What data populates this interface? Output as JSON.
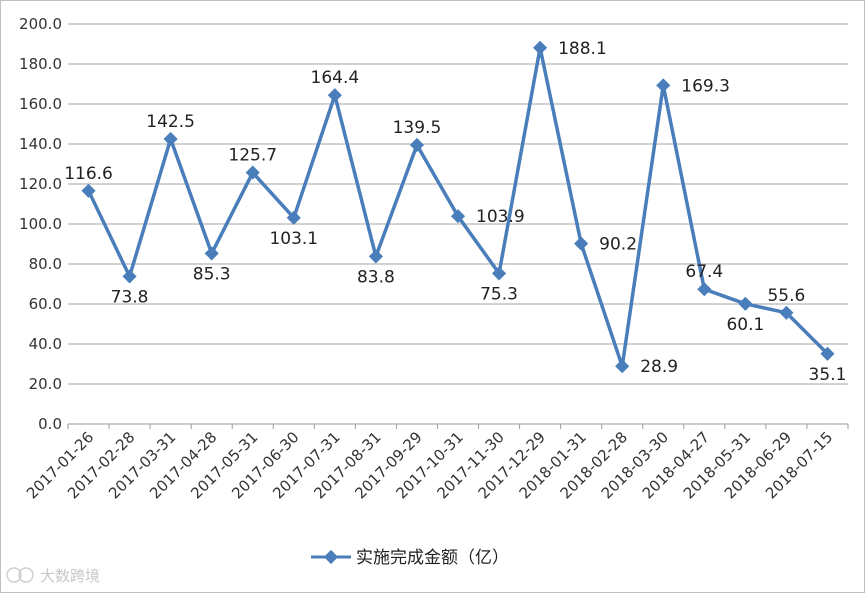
{
  "chart_data": {
    "type": "line",
    "categories": [
      "2017-01-26",
      "2017-02-28",
      "2017-03-31",
      "2017-04-28",
      "2017-05-31",
      "2017-06-30",
      "2017-07-31",
      "2017-08-31",
      "2017-09-29",
      "2017-10-31",
      "2017-11-30",
      "2017-12-29",
      "2018-01-31",
      "2018-02-28",
      "2018-03-30",
      "2018-04-27",
      "2018-05-31",
      "2018-06-29",
      "2018-07-15"
    ],
    "series": [
      {
        "name": "实施完成金额（亿）",
        "values": [
          116.6,
          73.8,
          142.5,
          85.3,
          125.7,
          103.1,
          164.4,
          83.8,
          139.5,
          103.9,
          75.3,
          188.1,
          90.2,
          28.9,
          169.3,
          67.4,
          60.1,
          55.6,
          35.1
        ],
        "data_labels": [
          "116.6",
          "73.8",
          "142.5",
          "85.3",
          "125.7",
          "103.1",
          "164.4",
          "83.8",
          "139.5",
          "103.9",
          "75.3",
          "188.1",
          "90.2",
          "28.9",
          "169.3",
          "67.4",
          "60.1",
          "55.6",
          "35.1"
        ],
        "color": "#4a7ebb"
      }
    ],
    "ylim": [
      0,
      200
    ],
    "yticks": [
      "0.0",
      "20.0",
      "40.0",
      "60.0",
      "80.0",
      "100.0",
      "120.0",
      "140.0",
      "160.0",
      "180.0",
      "200.0"
    ],
    "grid": true,
    "legend_position": "bottom",
    "title": "",
    "xlabel": "",
    "ylabel": ""
  },
  "watermark": "大数跨境"
}
